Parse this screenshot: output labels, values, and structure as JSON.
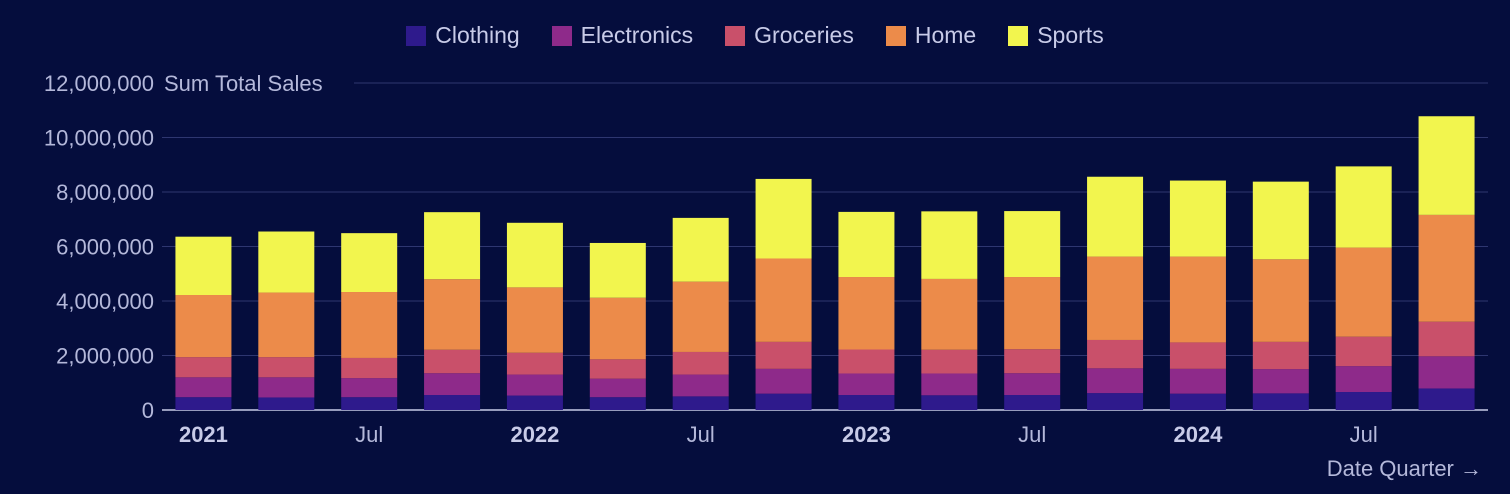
{
  "chart_data": {
    "type": "bar",
    "stacked": true,
    "ylabel": "Sum Total Sales",
    "xlabel": "Date Quarter →",
    "ylim": [
      0,
      12000000
    ],
    "yticks": [
      0,
      2000000,
      4000000,
      6000000,
      8000000,
      10000000,
      12000000
    ],
    "ytick_labels": [
      "0",
      "2,000,000",
      "4,000,000",
      "6,000,000",
      "8,000,000",
      "10,000,000",
      "12,000,000"
    ],
    "categories": [
      "2021 Q1",
      "2021 Q2",
      "2021 Q3",
      "2021 Q4",
      "2022 Q1",
      "2022 Q2",
      "2022 Q3",
      "2022 Q4",
      "2023 Q1",
      "2023 Q2",
      "2023 Q3",
      "2023 Q4",
      "2024 Q1",
      "2024 Q2",
      "2024 Q3",
      "2024 Q4"
    ],
    "x_tick_labels": [
      {
        "index": 0,
        "label": "2021",
        "major": true
      },
      {
        "index": 2,
        "label": "Jul",
        "major": false
      },
      {
        "index": 4,
        "label": "2022",
        "major": true
      },
      {
        "index": 6,
        "label": "Jul",
        "major": false
      },
      {
        "index": 8,
        "label": "2023",
        "major": true
      },
      {
        "index": 10,
        "label": "Jul",
        "major": false
      },
      {
        "index": 12,
        "label": "2024",
        "major": true
      },
      {
        "index": 14,
        "label": "Jul",
        "major": false
      }
    ],
    "series": [
      {
        "name": "Clothing",
        "color": "#2e1a8c",
        "values": [
          470000,
          460000,
          470000,
          550000,
          530000,
          470000,
          500000,
          600000,
          550000,
          540000,
          550000,
          620000,
          600000,
          610000,
          660000,
          790000
        ]
      },
      {
        "name": "Electronics",
        "color": "#8e2a8a",
        "values": [
          730000,
          740000,
          700000,
          800000,
          770000,
          680000,
          800000,
          910000,
          790000,
          800000,
          800000,
          910000,
          910000,
          890000,
          950000,
          1180000
        ]
      },
      {
        "name": "Groceries",
        "color": "#c9506a",
        "values": [
          740000,
          740000,
          740000,
          860000,
          800000,
          710000,
          830000,
          990000,
          880000,
          870000,
          880000,
          1040000,
          970000,
          1000000,
          1080000,
          1270000
        ]
      },
      {
        "name": "Home",
        "color": "#ec8b4a",
        "values": [
          2280000,
          2370000,
          2420000,
          2590000,
          2400000,
          2260000,
          2580000,
          3060000,
          2660000,
          2600000,
          2650000,
          3060000,
          3150000,
          3030000,
          3270000,
          3920000
        ]
      },
      {
        "name": "Sports",
        "color": "#f2f54e",
        "values": [
          2140000,
          2240000,
          2160000,
          2460000,
          2370000,
          2010000,
          2340000,
          2920000,
          2390000,
          2480000,
          2420000,
          2930000,
          2790000,
          2850000,
          2980000,
          3620000
        ]
      }
    ]
  }
}
